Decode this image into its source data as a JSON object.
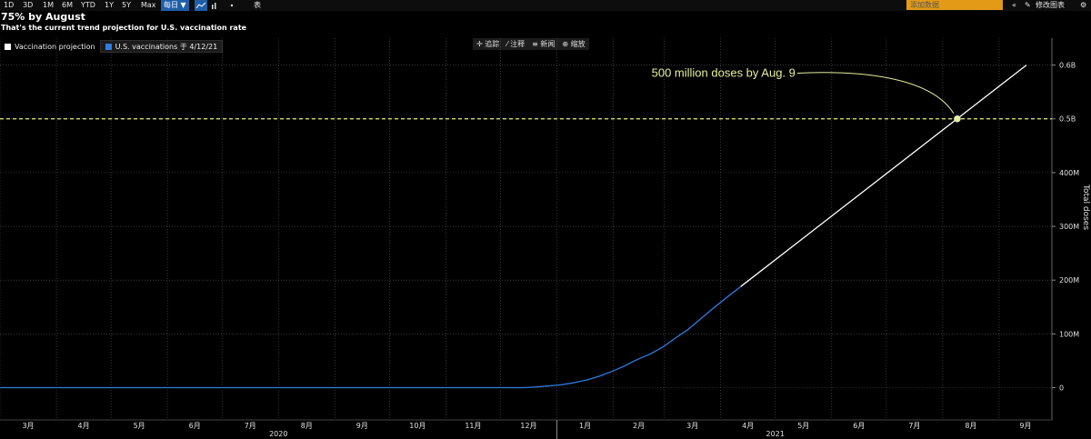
{
  "toolbar": {
    "periods": [
      "1D",
      "3D",
      "1M",
      "6M",
      "YTD",
      "1Y",
      "5Y",
      "Max"
    ],
    "frequency": "每日 ▼",
    "chart_icons": [
      "line-chart-icon",
      "bar-chart-icon",
      "dot-icon"
    ],
    "table_label": "表",
    "search_placeholder": "添加数据",
    "edit_label": "修改图表",
    "collapse_icon": "double-chevron-left-icon",
    "pencil_icon": "pencil-icon",
    "gear_icon": "gear-icon"
  },
  "chart_tools": {
    "track": "追踪",
    "annotate": "注释",
    "news": "新闻",
    "zoom": "缩放"
  },
  "chart_data": {
    "type": "line",
    "title": "75% by August",
    "subtitle": "That's the current trend projection for U.S. vaccination rate",
    "ylabel": "Total doses",
    "ylim": [
      -60000000,
      650000000
    ],
    "y_ticks": [
      {
        "v": 0,
        "label": "0"
      },
      {
        "v": 100000000,
        "label": "100M"
      },
      {
        "v": 200000000,
        "label": "200M"
      },
      {
        "v": 300000000,
        "label": "300M"
      },
      {
        "v": 400000000,
        "label": "400M"
      },
      {
        "v": 500000000,
        "label": "0.5B"
      },
      {
        "v": 600000000,
        "label": "0.6B"
      }
    ],
    "xlim": [
      "2020-03-01",
      "2021-09-30"
    ],
    "x_ticks": [
      {
        "d": "2020-03-01",
        "label": "3月"
      },
      {
        "d": "2020-04-01",
        "label": "4月"
      },
      {
        "d": "2020-05-01",
        "label": "5月"
      },
      {
        "d": "2020-06-01",
        "label": "6月"
      },
      {
        "d": "2020-07-01",
        "label": "7月"
      },
      {
        "d": "2020-08-01",
        "label": "8月"
      },
      {
        "d": "2020-09-01",
        "label": "9月"
      },
      {
        "d": "2020-10-01",
        "label": "10月"
      },
      {
        "d": "2020-11-01",
        "label": "11月"
      },
      {
        "d": "2020-12-01",
        "label": "12月"
      },
      {
        "d": "2021-01-01",
        "label": "1月"
      },
      {
        "d": "2021-02-01",
        "label": "2月"
      },
      {
        "d": "2021-03-01",
        "label": "3月"
      },
      {
        "d": "2021-04-01",
        "label": "4月"
      },
      {
        "d": "2021-05-01",
        "label": "5月"
      },
      {
        "d": "2021-06-01",
        "label": "6月"
      },
      {
        "d": "2021-07-01",
        "label": "7月"
      },
      {
        "d": "2021-08-01",
        "label": "8月"
      },
      {
        "d": "2021-09-01",
        "label": "9月"
      }
    ],
    "years": [
      {
        "label": "2020",
        "d": "2020-08-01"
      },
      {
        "label": "2021",
        "d": "2021-05-01"
      }
    ],
    "grid": true,
    "legend_position": "top-left",
    "series": [
      {
        "name": "Vaccination projection",
        "color": "#ffffff",
        "x": [
          "2021-04-12",
          "2021-09-16"
        ],
        "y": [
          188000000,
          600000000
        ]
      },
      {
        "name": "U.S. vaccinations",
        "legend_suffix": "于 4/12/21",
        "color": "#2f7de1",
        "x": [
          "2020-03-01",
          "2020-06-01",
          "2020-09-01",
          "2020-12-13",
          "2020-12-20",
          "2020-12-27",
          "2021-01-03",
          "2021-01-10",
          "2021-01-17",
          "2021-01-24",
          "2021-01-31",
          "2021-02-07",
          "2021-02-14",
          "2021-02-21",
          "2021-02-28",
          "2021-03-07",
          "2021-03-14",
          "2021-03-21",
          "2021-03-28",
          "2021-04-04",
          "2021-04-12"
        ],
        "y": [
          0,
          0,
          0,
          0,
          1000000,
          3000000,
          5000000,
          9000000,
          14000000,
          21000000,
          30000000,
          40000000,
          52000000,
          62000000,
          75000000,
          92000000,
          108000000,
          128000000,
          148000000,
          167000000,
          188000000
        ]
      }
    ],
    "reference_line": {
      "y": 500000000,
      "color": "#e6ee6a",
      "style": "dashed"
    },
    "annotation": {
      "text": "500 million doses by Aug. 9",
      "point_x": "2021-08-09",
      "point_y": 500000000,
      "color": "#e6ee9a"
    }
  }
}
